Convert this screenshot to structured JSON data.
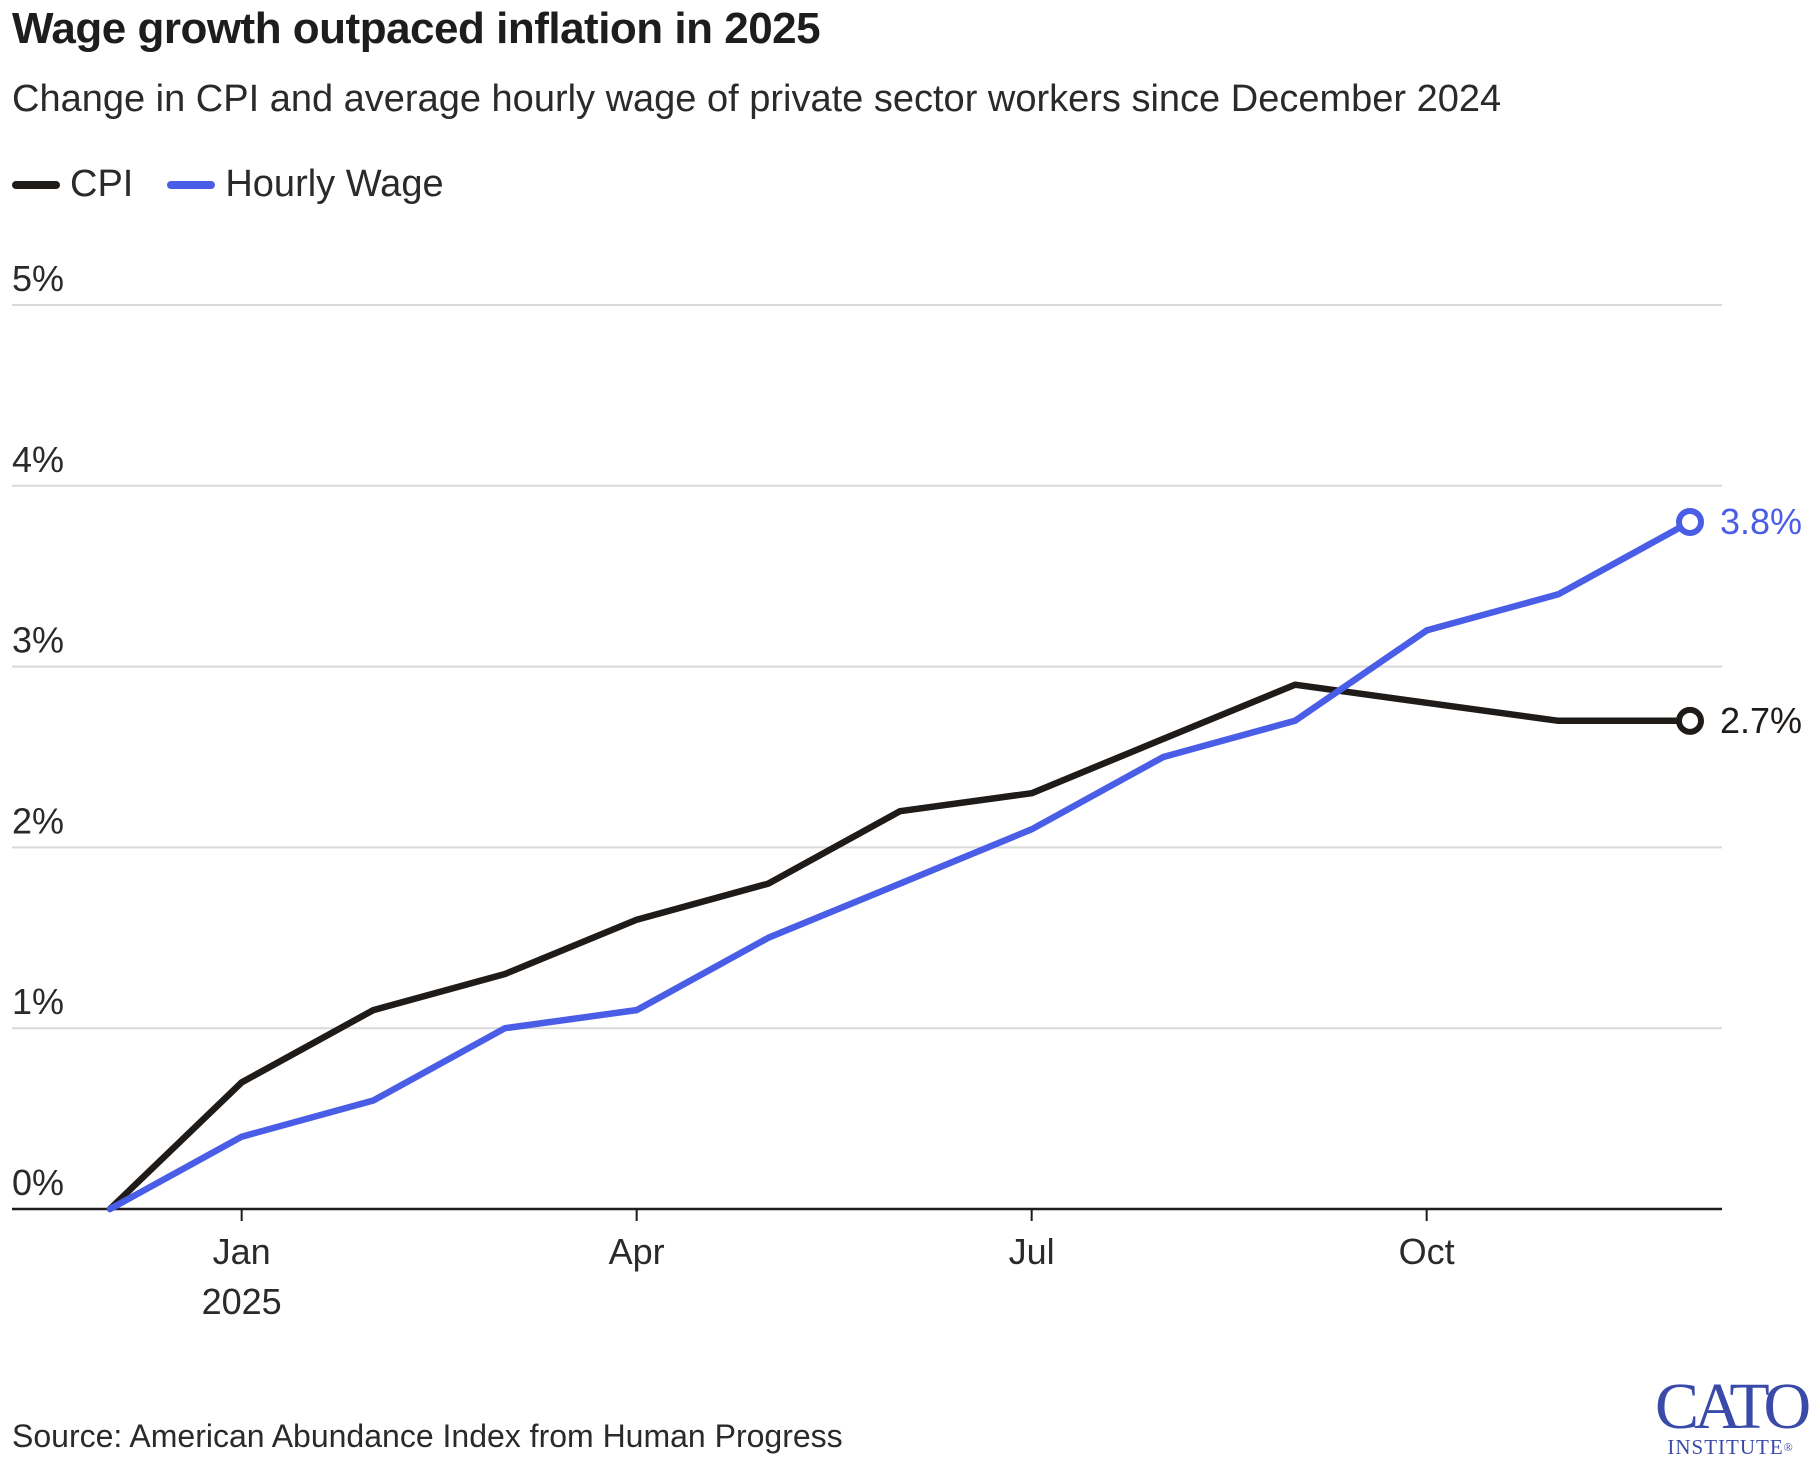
{
  "colors": {
    "cpi": "#1f1b18",
    "wage": "#4a5de6",
    "grid": "#d9d9d9",
    "axis": "#1f1d1b",
    "logo": "#3a4aa8"
  },
  "chart_data": {
    "type": "line",
    "title": "Wage growth outpaced inflation in 2025",
    "subtitle": "Change in CPI and average hourly wage of private sector workers since December 2024",
    "xlabel": "",
    "ylabel": "",
    "x": [
      "Dec 2024",
      "Jan 2025",
      "Feb 2025",
      "Mar 2025",
      "Apr 2025",
      "May 2025",
      "Jun 2025",
      "Jul 2025",
      "Aug 2025",
      "Sep 2025",
      "Oct 2025",
      "Nov 2025",
      "Dec 2025"
    ],
    "series": [
      {
        "name": "CPI",
        "color": "#1f1b18",
        "values": [
          0,
          0.7,
          1.1,
          1.3,
          1.6,
          1.8,
          2.2,
          2.3,
          2.6,
          2.9,
          2.8,
          2.7,
          2.7
        ]
      },
      {
        "name": "Hourly Wage",
        "color": "#4a5de6",
        "values": [
          0,
          0.4,
          0.6,
          1.0,
          1.1,
          1.5,
          1.8,
          2.1,
          2.5,
          2.7,
          3.2,
          3.4,
          3.8
        ]
      }
    ],
    "ylim": [
      0,
      5
    ],
    "yticks": [
      0,
      1,
      2,
      3,
      4,
      5
    ],
    "ytick_labels": [
      "0%",
      "1%",
      "2%",
      "3%",
      "4%",
      "5%"
    ],
    "xticks": [
      {
        "index": 1,
        "label": "Jan",
        "sublabel": "2025"
      },
      {
        "index": 4,
        "label": "Apr",
        "sublabel": ""
      },
      {
        "index": 7,
        "label": "Jul",
        "sublabel": ""
      },
      {
        "index": 10,
        "label": "Oct",
        "sublabel": ""
      }
    ],
    "end_labels": [
      {
        "series": "Hourly Wage",
        "text": "3.8%"
      },
      {
        "series": "CPI",
        "text": "2.7%"
      }
    ],
    "legend": "top-left",
    "grid": true
  },
  "legend_items": [
    {
      "label": "CPI"
    },
    {
      "label": "Hourly Wage"
    }
  ],
  "source": "Source: American Abundance Index from Human Progress",
  "logo": {
    "main": "CATO",
    "sub": "INSTITUTE",
    "mark": "®"
  }
}
